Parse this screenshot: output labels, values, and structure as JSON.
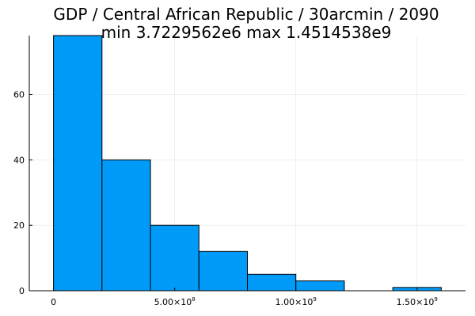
{
  "chart_data": {
    "type": "bar",
    "title": "GDP / Central African Republic / 30arcmin / 2090",
    "subtitle": "min 3.7229562e6  max 1.4514538e9",
    "xlabel": "",
    "ylabel": "",
    "bin_edges": [
      0,
      200000000,
      400000000,
      600000000,
      800000000,
      1000000000,
      1200000000,
      1400000000,
      1600000000
    ],
    "values": [
      78,
      40,
      20,
      12,
      5,
      3,
      0,
      1
    ],
    "xlim": [
      -100000000,
      1700000000
    ],
    "ylim": [
      0,
      78
    ],
    "x_ticks": [
      {
        "value": 0,
        "mantissa": "0",
        "exp": ""
      },
      {
        "value": 500000000,
        "mantissa": "5.00×10",
        "exp": "8"
      },
      {
        "value": 1000000000,
        "mantissa": "1.00×10",
        "exp": "9"
      },
      {
        "value": 1500000000,
        "mantissa": "1.50×10",
        "exp": "9"
      }
    ],
    "y_ticks": [
      0,
      20,
      40,
      60
    ],
    "bar_color": "#009af9",
    "grid": true,
    "legend": false
  }
}
